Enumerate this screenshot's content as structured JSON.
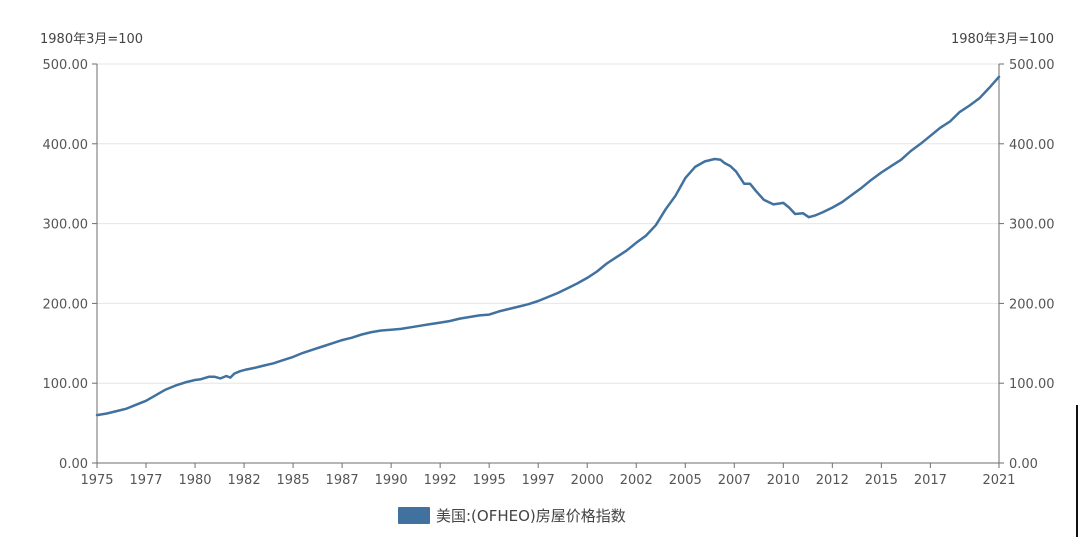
{
  "chart_data": {
    "type": "line",
    "left_unit_label": "1980年3月=100",
    "right_unit_label": "1980年3月=100",
    "ylim": [
      0,
      500
    ],
    "y_ticks": [
      "0.00",
      "100.00",
      "200.00",
      "300.00",
      "400.00",
      "500.00"
    ],
    "xlim": [
      1975,
      2021
    ],
    "x_ticks": [
      {
        "value": 1975,
        "label": "1975"
      },
      {
        "value": 1977.5,
        "label": "1977"
      },
      {
        "value": 1980,
        "label": "1980"
      },
      {
        "value": 1982.5,
        "label": "1982"
      },
      {
        "value": 1985,
        "label": "1985"
      },
      {
        "value": 1987.5,
        "label": "1987"
      },
      {
        "value": 1990,
        "label": "1990"
      },
      {
        "value": 1992.5,
        "label": "1992"
      },
      {
        "value": 1995,
        "label": "1995"
      },
      {
        "value": 1997.5,
        "label": "1997"
      },
      {
        "value": 2000,
        "label": "2000"
      },
      {
        "value": 2002.5,
        "label": "2002"
      },
      {
        "value": 2005,
        "label": "2005"
      },
      {
        "value": 2007.5,
        "label": "2007"
      },
      {
        "value": 2010,
        "label": "2010"
      },
      {
        "value": 2012.5,
        "label": "2012"
      },
      {
        "value": 2015,
        "label": "2015"
      },
      {
        "value": 2017.5,
        "label": "2017"
      },
      {
        "value": 2021,
        "label": "2021"
      }
    ],
    "grid": true,
    "legend": "bottom-center",
    "series": [
      {
        "name": "美国:(OFHEO)房屋价格指数",
        "color": "#41729f",
        "x": [
          1975.0,
          1975.5,
          1976.0,
          1976.5,
          1977.0,
          1977.5,
          1978.0,
          1978.5,
          1979.0,
          1979.5,
          1980.0,
          1980.3,
          1980.7,
          1981.0,
          1981.3,
          1981.6,
          1981.8,
          1982.0,
          1982.3,
          1982.6,
          1983.0,
          1983.5,
          1984.0,
          1984.5,
          1985.0,
          1985.5,
          1986.0,
          1986.5,
          1987.0,
          1987.5,
          1988.0,
          1988.5,
          1989.0,
          1989.5,
          1990.0,
          1990.5,
          1991.0,
          1991.5,
          1992.0,
          1992.5,
          1993.0,
          1993.5,
          1994.0,
          1994.5,
          1995.0,
          1995.5,
          1996.0,
          1996.5,
          1997.0,
          1997.5,
          1998.0,
          1998.5,
          1999.0,
          1999.5,
          2000.0,
          2000.5,
          2001.0,
          2001.5,
          2002.0,
          2002.5,
          2003.0,
          2003.5,
          2004.0,
          2004.5,
          2005.0,
          2005.5,
          2006.0,
          2006.5,
          2006.8,
          2007.0,
          2007.3,
          2007.6,
          2008.0,
          2008.3,
          2008.6,
          2009.0,
          2009.5,
          2010.0,
          2010.3,
          2010.6,
          2011.0,
          2011.3,
          2011.6,
          2012.0,
          2012.5,
          2013.0,
          2013.5,
          2014.0,
          2014.5,
          2015.0,
          2015.5,
          2016.0,
          2016.5,
          2017.0,
          2017.5,
          2018.0,
          2018.5,
          2019.0,
          2019.5,
          2020.0,
          2020.5,
          2021.0
        ],
        "values": [
          60,
          62,
          65,
          68,
          73,
          78,
          85,
          92,
          97,
          101,
          104,
          105,
          108,
          108,
          106,
          109,
          107,
          112,
          115,
          117,
          119,
          122,
          125,
          129,
          133,
          138,
          142,
          146,
          150,
          154,
          157,
          161,
          164,
          166,
          167,
          168,
          170,
          172,
          174,
          176,
          178,
          181,
          183,
          185,
          186,
          190,
          193,
          196,
          199,
          203,
          208,
          213,
          219,
          225,
          232,
          240,
          250,
          258,
          266,
          276,
          285,
          298,
          318,
          335,
          357,
          371,
          378,
          381,
          380,
          376,
          372,
          365,
          350,
          350,
          341,
          330,
          324,
          326,
          320,
          312,
          313,
          308,
          310,
          314,
          320,
          327,
          336,
          345,
          355,
          364,
          372,
          380,
          391,
          400,
          410,
          420,
          428,
          440,
          448,
          457,
          470,
          484
        ]
      }
    ]
  }
}
